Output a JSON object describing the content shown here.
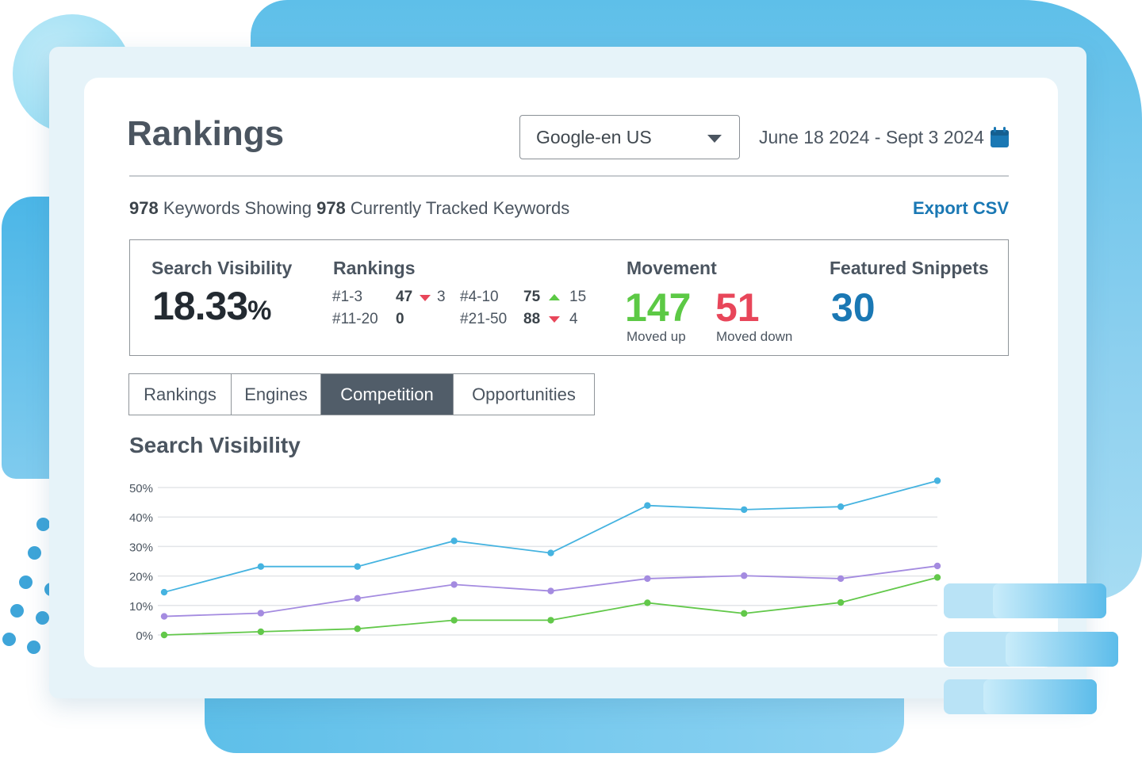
{
  "header": {
    "title": "Rankings",
    "engine_select": "Google-en US",
    "date_range": "June 18 2024 - Sept 3 2024"
  },
  "summary": {
    "showing_count": "978",
    "showing_text": "Keywords Showing",
    "tracked_count": "978",
    "tracked_text": "Currently Tracked Keywords",
    "export_label": "Export CSV"
  },
  "stats": {
    "visibility_label": "Search Visibility",
    "visibility_value": "18.33",
    "visibility_unit": "%",
    "rankings_label": "Rankings",
    "rankings": [
      {
        "range": "#1-3",
        "count": "47",
        "trend": "down",
        "change": "3"
      },
      {
        "range": "#4-10",
        "count": "75",
        "trend": "up",
        "change": "15"
      },
      {
        "range": "#11-20",
        "count": "0",
        "trend": "",
        "change": ""
      },
      {
        "range": "#21-50",
        "count": "88",
        "trend": "down",
        "change": "4"
      }
    ],
    "movement_label": "Movement",
    "moved_up_value": "147",
    "moved_up_label": "Moved up",
    "moved_down_value": "51",
    "moved_down_label": "Moved down",
    "snippets_label": "Featured Snippets",
    "snippets_value": "30"
  },
  "tabs": [
    {
      "label": "Rankings",
      "active": false
    },
    {
      "label": "Engines",
      "active": false
    },
    {
      "label": "Competition",
      "active": true
    },
    {
      "label": "Opportunities",
      "active": false
    }
  ],
  "section_title": "Search Visibility",
  "colors": {
    "accent": "#1a78b4",
    "up": "#5cc945",
    "down": "#e8465a",
    "snippets": "#1a78b4",
    "tab_active": "#515d69"
  },
  "chart_data": {
    "type": "line",
    "ylim": [
      0,
      50
    ],
    "y_ticks": [
      "50%",
      "40%",
      "30%",
      "20%",
      "10%",
      "0%"
    ],
    "grid": true,
    "x": [
      1,
      2,
      3,
      4,
      5,
      6,
      7,
      8,
      9
    ],
    "series": [
      {
        "color": "#45b3e0",
        "values": [
          14.5,
          23.2,
          23.2,
          31.9,
          27.8,
          43.9,
          42.5,
          43.5,
          52.3
        ]
      },
      {
        "color": "#a48be0",
        "values": [
          6.3,
          7.4,
          12.4,
          17.1,
          14.9,
          19.1,
          20.1,
          19.1,
          23.4
        ]
      },
      {
        "color": "#62c84a",
        "values": [
          0,
          1.1,
          2.1,
          5.0,
          5.0,
          10.9,
          7.3,
          11.0,
          19.5
        ]
      }
    ]
  }
}
